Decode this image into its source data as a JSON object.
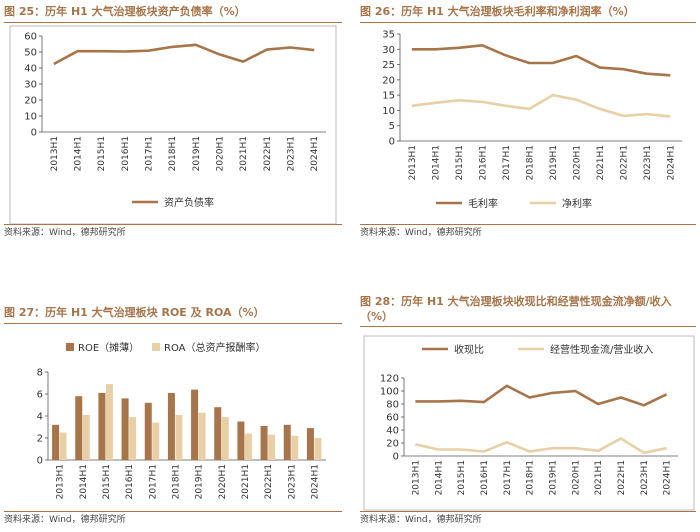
{
  "colors": {
    "dark": "#a8754a",
    "light": "#e8cfa6",
    "axis": "#555555",
    "title": "#a8754a"
  },
  "source_text": "资料来源：Wind，德邦研究所",
  "chart_data": [
    {
      "id": "fig25",
      "type": "line",
      "title": "图 25：历年 H1 大气治理板块资产负债率（%）",
      "categories": [
        "2013H1",
        "2014H1",
        "2015H1",
        "2016H1",
        "2017H1",
        "2018H1",
        "2019H1",
        "2020H1",
        "2021H1",
        "2022H1",
        "2023H1",
        "2024H1"
      ],
      "ylim": [
        0,
        60
      ],
      "yticks": [
        0,
        10,
        20,
        30,
        40,
        50,
        60
      ],
      "series": [
        {
          "name": "资产负债率",
          "color": "#a8754a",
          "values": [
            42.5,
            50.5,
            50.5,
            50.3,
            50.8,
            53.2,
            54.5,
            48.5,
            44.0,
            51.5,
            52.8,
            51.2
          ]
        }
      ],
      "legend_position": "bottom"
    },
    {
      "id": "fig26",
      "type": "line",
      "title": "图 26：历年 H1 大气治理板块毛利率和净利润率（%）",
      "categories": [
        "2013H1",
        "2014H1",
        "2015H1",
        "2016H1",
        "2017H1",
        "2018H1",
        "2019H1",
        "2020H1",
        "2021H1",
        "2022H1",
        "2023H1",
        "2024H1"
      ],
      "ylim": [
        0,
        35
      ],
      "yticks": [
        0,
        5,
        10,
        15,
        20,
        25,
        30,
        35
      ],
      "series": [
        {
          "name": "毛利率",
          "color": "#a8754a",
          "values": [
            30.0,
            30.0,
            30.5,
            31.3,
            28.0,
            25.5,
            25.5,
            27.8,
            24.0,
            23.5,
            22.0,
            21.5
          ]
        },
        {
          "name": "净利率",
          "color": "#e8cfa6",
          "values": [
            11.5,
            12.5,
            13.3,
            12.8,
            11.5,
            10.5,
            15.0,
            13.5,
            10.5,
            8.2,
            8.8,
            8.0
          ]
        }
      ],
      "legend_position": "bottom"
    },
    {
      "id": "fig27",
      "type": "bar",
      "title": "图 27：历年 H1 大气治理板块 ROE 及 ROA（%）",
      "categories": [
        "2013H1",
        "2014H1",
        "2015H1",
        "2016H1",
        "2017H1",
        "2018H1",
        "2019H1",
        "2020H1",
        "2021H1",
        "2022H1",
        "2023H1",
        "2024H1"
      ],
      "ylim": [
        0,
        8
      ],
      "yticks": [
        0,
        2,
        4,
        6,
        8
      ],
      "series": [
        {
          "name": "ROE（摊薄）",
          "color": "#a8754a",
          "values": [
            3.2,
            5.8,
            6.1,
            5.6,
            5.2,
            6.1,
            6.4,
            4.8,
            3.5,
            3.1,
            3.2,
            2.9
          ]
        },
        {
          "name": "ROA（总资产报酬率）",
          "color": "#e8cfa6",
          "values": [
            2.5,
            4.1,
            6.9,
            3.9,
            3.4,
            4.1,
            4.3,
            3.9,
            2.4,
            2.3,
            2.2,
            2.0
          ]
        }
      ],
      "legend_position": "top"
    },
    {
      "id": "fig28",
      "type": "line",
      "title": "图 28：历年 H1 大气治理板块收现比和经营性现金流净额/收入（%）",
      "categories": [
        "2013H1",
        "2014H1",
        "2015H1",
        "2016H1",
        "2017H1",
        "2018H1",
        "2019H1",
        "2020H1",
        "2021H1",
        "2022H1",
        "2023H1",
        "2024H1"
      ],
      "ylim": [
        0,
        120
      ],
      "yticks": [
        0,
        20,
        40,
        60,
        80,
        100,
        120
      ],
      "series": [
        {
          "name": "收现比",
          "color": "#a8754a",
          "values": [
            84,
            84,
            85,
            83,
            108,
            90,
            97,
            100,
            80,
            90,
            78,
            95
          ]
        },
        {
          "name": "经营性现金流/营业收入",
          "color": "#e8cfa6",
          "values": [
            18,
            10,
            10,
            7,
            21,
            7,
            12,
            12,
            8,
            27,
            5,
            12
          ]
        }
      ],
      "legend_position": "top"
    }
  ]
}
